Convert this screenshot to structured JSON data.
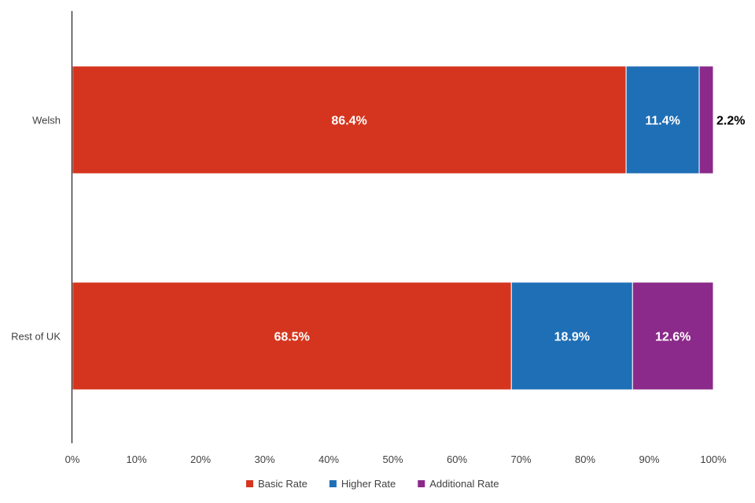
{
  "chart_data": {
    "type": "bar",
    "orientation": "horizontal",
    "stacked": true,
    "categories": [
      "Welsh",
      "Rest of UK"
    ],
    "series": [
      {
        "name": "Basic Rate",
        "color": "#d5351e",
        "values": [
          86.4,
          68.5
        ],
        "labels": [
          "86.4%",
          "68.5%"
        ],
        "label_color": "#ffffff"
      },
      {
        "name": "Higher Rate",
        "color": "#1f6fb6",
        "values": [
          11.4,
          18.9
        ],
        "labels": [
          "11.4%",
          "18.9%"
        ],
        "label_color": "#ffffff"
      },
      {
        "name": "Additional Rate",
        "color": "#8b2a8a",
        "values": [
          2.2,
          12.6
        ],
        "labels": [
          "2.2%",
          "12.6%"
        ],
        "label_color": "#ffffff"
      }
    ],
    "xlim": [
      0,
      100
    ],
    "xticks": [
      "0%",
      "10%",
      "20%",
      "30%",
      "40%",
      "50%",
      "60%",
      "70%",
      "80%",
      "90%",
      "100%"
    ],
    "title": "",
    "xlabel": "",
    "ylabel": "",
    "grid": false,
    "legend_position": "bottom"
  }
}
